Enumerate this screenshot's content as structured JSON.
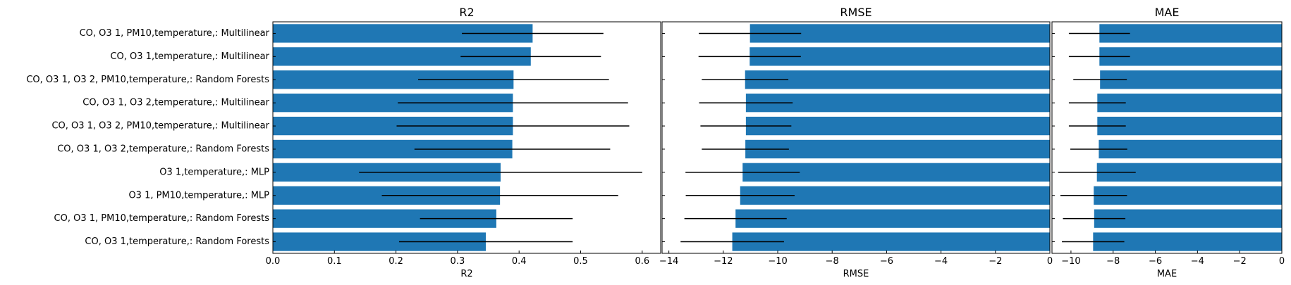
{
  "chart_data": {
    "categories": [
      "CO, O3 1, PM10,temperature,: Multilinear",
      "CO, O3 1,temperature,: Multilinear",
      "CO, O3 1, O3 2, PM10,temperature,: Random Forests",
      "CO, O3 1, O3 2,temperature,: Multilinear",
      "CO, O3 1, O3 2, PM10,temperature,: Multilinear",
      "CO, O3 1, O3 2,temperature,: Random Forests",
      "O3 1,temperature,: MLP",
      "O3 1, PM10,temperature,: MLP",
      "CO, O3 1, PM10,temperature,: Random Forests",
      "CO, O3 1,temperature,: Random Forests"
    ],
    "bar_color": "#1f77b4",
    "error_color": "#000000",
    "panels": [
      {
        "type": "bar",
        "orientation": "horizontal",
        "title": "R2",
        "xlabel": "R2",
        "xlim": [
          0,
          0.63
        ],
        "ticks": [
          0,
          0.1,
          0.2,
          0.3,
          0.4,
          0.5,
          0.6
        ],
        "tick_labels": [
          "0.0",
          "0.1",
          "0.2",
          "0.3",
          "0.4",
          "0.5",
          "0.6"
        ],
        "values": [
          0.422,
          0.419,
          0.391,
          0.39,
          0.39,
          0.389,
          0.37,
          0.369,
          0.363,
          0.346
        ],
        "errors": [
          0.115,
          0.114,
          0.155,
          0.187,
          0.189,
          0.159,
          0.23,
          0.192,
          0.124,
          0.141
        ]
      },
      {
        "type": "bar",
        "orientation": "horizontal",
        "title": "RMSE",
        "xlabel": "RMSE",
        "xlim": [
          -14.25,
          0
        ],
        "ticks": [
          -14,
          -12,
          -10,
          -8,
          -6,
          -4,
          -2,
          0
        ],
        "tick_labels": [
          "−14",
          "−12",
          "−10",
          "−8",
          "−6",
          "−4",
          "−2",
          "0"
        ],
        "values": [
          -11.02,
          -11.03,
          -11.2,
          -11.17,
          -11.17,
          -11.19,
          -11.29,
          -11.38,
          -11.55,
          -11.67
        ],
        "errors": [
          1.88,
          1.88,
          1.59,
          1.72,
          1.67,
          1.6,
          2.1,
          2.0,
          1.88,
          1.9
        ]
      },
      {
        "type": "bar",
        "orientation": "horizontal",
        "title": "MAE",
        "xlabel": "MAE",
        "xlim": [
          -10.9,
          0
        ],
        "ticks": [
          -10,
          -8,
          -6,
          -4,
          -2,
          0
        ],
        "tick_labels": [
          "−10",
          "−8",
          "−6",
          "−4",
          "−2",
          "0"
        ],
        "values": [
          -8.65,
          -8.65,
          -8.62,
          -8.75,
          -8.75,
          -8.68,
          -8.77,
          -8.92,
          -8.9,
          -8.95
        ],
        "errors": [
          1.45,
          1.45,
          1.27,
          1.35,
          1.35,
          1.35,
          1.84,
          1.58,
          1.48,
          1.48
        ]
      }
    ]
  }
}
